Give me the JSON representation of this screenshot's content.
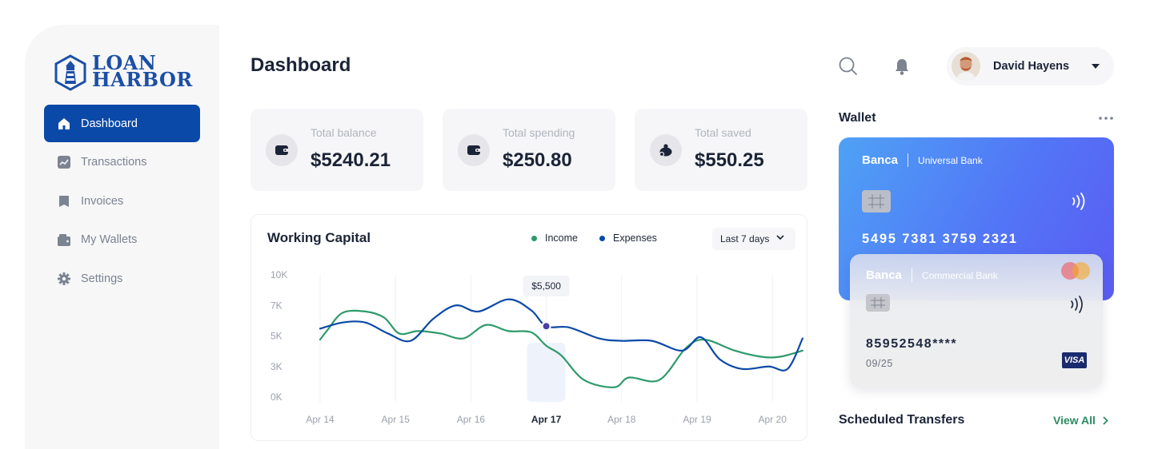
{
  "brand": {
    "line1": "LOAN",
    "line2": "HARBOR"
  },
  "sidebar": {
    "items": [
      {
        "label": "Dashboard",
        "icon": "home-icon",
        "active": true
      },
      {
        "label": "Transactions",
        "icon": "trend-icon",
        "active": false
      },
      {
        "label": "Invoices",
        "icon": "invoice-icon",
        "active": false
      },
      {
        "label": "My Wallets",
        "icon": "wallet-icon",
        "active": false
      },
      {
        "label": "Settings",
        "icon": "gear-icon",
        "active": false
      }
    ]
  },
  "header": {
    "title": "Dashboard",
    "user_name": "David Hayens"
  },
  "stats": [
    {
      "label": "Total balance",
      "value": "$5240.21",
      "icon": "wallet-icon"
    },
    {
      "label": "Total spending",
      "value": "$250.80",
      "icon": "wallet-icon"
    },
    {
      "label": "Total saved",
      "value": "$550.25",
      "icon": "savings-icon"
    }
  ],
  "working_capital": {
    "title": "Working Capital",
    "legend": {
      "income": "Income",
      "expenses": "Expenses"
    },
    "range": "Last 7 days",
    "tooltip": "$5,500"
  },
  "chart_data": {
    "type": "line",
    "title": "Working Capital",
    "x": [
      "Apr 14",
      "Apr 15",
      "Apr 16",
      "Apr 17",
      "Apr 18",
      "Apr 19",
      "Apr 20"
    ],
    "y_ticks": [
      "10K",
      "7K",
      "5K",
      "3K",
      "0K"
    ],
    "ylim": [
      0,
      10
    ],
    "highlight": {
      "x": "Apr 17",
      "label": "$5,500"
    },
    "series": [
      {
        "name": "Income",
        "color": "#2e9a6a",
        "points": [
          [
            0,
            4.7
          ],
          [
            0.1,
            5.5
          ],
          [
            0.3,
            6.9
          ],
          [
            0.6,
            7.0
          ],
          [
            0.85,
            6.5
          ],
          [
            1.05,
            5.2
          ],
          [
            1.3,
            5.4
          ],
          [
            1.6,
            5.2
          ],
          [
            1.9,
            4.8
          ],
          [
            2.2,
            5.9
          ],
          [
            2.5,
            5.4
          ],
          [
            2.8,
            5.3
          ],
          [
            3.0,
            4.2
          ],
          [
            3.2,
            3.4
          ],
          [
            3.5,
            1.4
          ],
          [
            3.9,
            0.8
          ],
          [
            4.1,
            1.6
          ],
          [
            4.5,
            1.4
          ],
          [
            4.85,
            4.0
          ],
          [
            5.1,
            4.7
          ],
          [
            5.5,
            3.8
          ],
          [
            5.85,
            3.3
          ],
          [
            6.1,
            3.3
          ],
          [
            6.4,
            3.8
          ]
        ]
      },
      {
        "name": "Expenses",
        "color": "#0b49a8",
        "points": [
          [
            0,
            5.6
          ],
          [
            0.3,
            6.1
          ],
          [
            0.6,
            6.1
          ],
          [
            0.9,
            5.2
          ],
          [
            1.2,
            4.6
          ],
          [
            1.5,
            6.4
          ],
          [
            1.8,
            7.5
          ],
          [
            2.1,
            7.0
          ],
          [
            2.5,
            8.0
          ],
          [
            2.8,
            7.1
          ],
          [
            3.0,
            5.8
          ],
          [
            3.3,
            5.7
          ],
          [
            3.7,
            4.8
          ],
          [
            4.0,
            4.6
          ],
          [
            4.4,
            4.6
          ],
          [
            4.8,
            3.8
          ],
          [
            5.05,
            4.9
          ],
          [
            5.3,
            3.1
          ],
          [
            5.6,
            2.3
          ],
          [
            5.95,
            2.5
          ],
          [
            6.2,
            2.3
          ],
          [
            6.4,
            4.8
          ]
        ]
      }
    ]
  },
  "wallet": {
    "title": "Wallet",
    "card1": {
      "brand": "Banca",
      "bank": "Universal Bank",
      "number": "5495 7381 3759 2321"
    },
    "card2": {
      "brand": "Banca",
      "bank": "Commercial Bank",
      "number": "85952548****",
      "expiry": "09/25",
      "network": "VISA"
    }
  },
  "scheduled": {
    "title": "Scheduled Transfers",
    "view_all": "View All"
  }
}
